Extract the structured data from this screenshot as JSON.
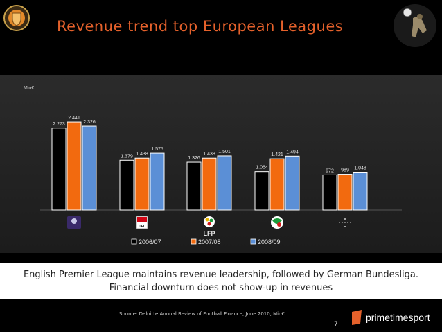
{
  "slide": {
    "title": "Revenue trend top European Leagues",
    "caption_line1": "English Premier League maintains revenue leadership, followed by German Bundesliga.",
    "caption_line2": "Financial downturn does not show-up in revenues",
    "source": "Source: Deloitte Annual Review of Football Finance, June 2010, Mio€",
    "page_number": "7",
    "brand_name": "primetimesport",
    "accent_color": "#e5612b"
  },
  "chart_data": {
    "type": "bar",
    "ylabel": "Mio€",
    "categories": [
      "",
      "",
      "",
      "",
      ""
    ],
    "category_logo_text": [
      "",
      "DFL",
      "LFP",
      "",
      ""
    ],
    "series": [
      {
        "name": "2006/07",
        "color": "#000000",
        "values": [
          2273,
          1379,
          1326,
          1064,
          972
        ],
        "labels": [
          "2.273",
          "1.379",
          "1.326",
          "1.064",
          "972"
        ]
      },
      {
        "name": "2007/08",
        "color": "#f26a0f",
        "values": [
          2441,
          1438,
          1438,
          1421,
          989
        ],
        "labels": [
          "2.441",
          "1.438",
          "1.438",
          "1.421",
          "989"
        ]
      },
      {
        "name": "2008/09",
        "color": "#5b8fd6",
        "values": [
          2326,
          1575,
          1501,
          1494,
          1048
        ],
        "labels": [
          "2.326",
          "1.575",
          "1.501",
          "1.494",
          "1.048"
        ]
      }
    ],
    "legend_position": "bottom",
    "grid": false
  }
}
